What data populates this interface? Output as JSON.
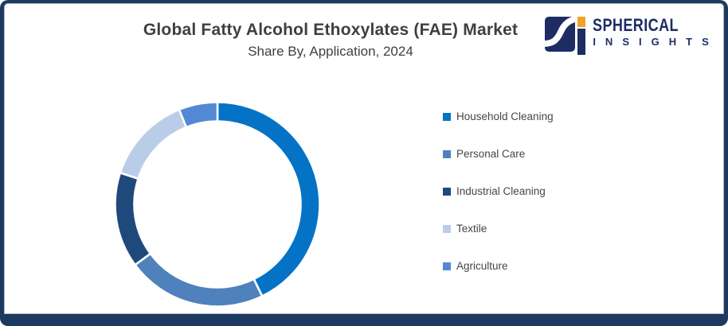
{
  "frame": {
    "border_color": "#1C3960",
    "inner_line_color": "#b3bac5",
    "background": "#ffffff"
  },
  "header": {
    "title": "Global Fatty Alcohol Ethoxylates (FAE) Market",
    "subtitle": "Share By, Application, 2024",
    "text_color": "#3f3f3f"
  },
  "logo": {
    "brand_top": "SPHERICAL",
    "brand_bottom": "I N S I G H T S",
    "navy": "#1D2D64",
    "orange": "#F0A32C"
  },
  "chart_data": {
    "type": "pie",
    "donut": true,
    "title": "Global Fatty Alcohol Ethoxylates (FAE) Market Share By, Application, 2024",
    "start_angle_deg": 0,
    "direction": "clockwise",
    "legend_position": "right",
    "inner_radius_ratio": 0.8,
    "categories": [
      "Household Cleaning",
      "Personal Care",
      "Industrial Cleaning",
      "Textile",
      "Agriculture"
    ],
    "values_pct": [
      42.8,
      22.1,
      15.1,
      13.9,
      6.1
    ],
    "colors": [
      "#0473C6",
      "#4F81BC",
      "#20497B",
      "#BACDE8",
      "#5389D4"
    ],
    "segment_gap_color": "#ffffff"
  },
  "legend": {
    "text_color": "#464646"
  }
}
